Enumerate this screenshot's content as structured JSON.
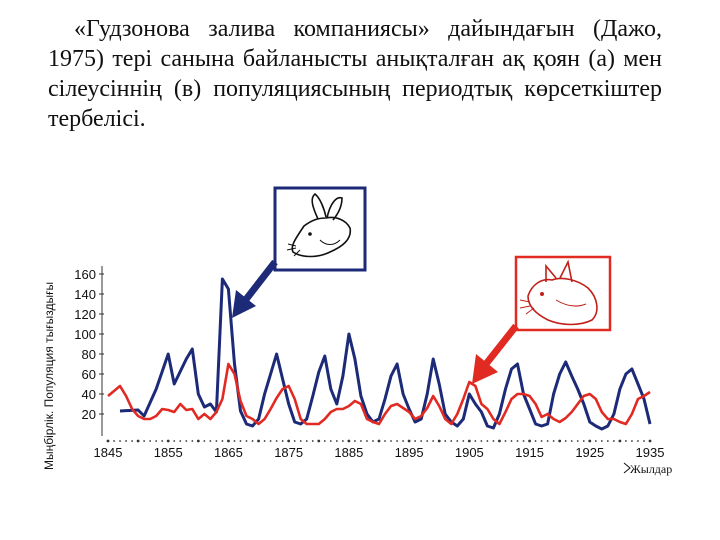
{
  "caption": "«Гудзонова залива компаниясы» дайындағын (Дажо, 1975) тері санына байланысты анықталған ақ қоян (а) мен сілеусіннің (в) популяциясының периодтық көрсеткіштер тербелісі.",
  "chart_data": {
    "type": "line",
    "ylabel": "Мыңбірлік. Популяция тығыздығы",
    "xlabel": "Жылдар",
    "ylim": [
      0,
      160
    ],
    "xlim": [
      1845,
      1935
    ],
    "yticks": [
      "160",
      "140",
      "120",
      "100",
      "80",
      "60",
      "40",
      "20"
    ],
    "xticks": [
      "1845",
      "1855",
      "1865",
      "1875",
      "1885",
      "1895",
      "1905",
      "1915",
      "1925",
      "1935"
    ],
    "grid": false,
    "series": [
      {
        "color": "#1c2a78",
        "icon": "hare-icon",
        "x": [
          1847,
          1850,
          1851,
          1853,
          1855,
          1856,
          1858,
          1859,
          1860,
          1861,
          1862,
          1863,
          1864,
          1865,
          1866,
          1867,
          1868,
          1869,
          1870,
          1871,
          1872,
          1873,
          1874,
          1875,
          1876,
          1877,
          1878,
          1879,
          1880,
          1881,
          1882,
          1883,
          1884,
          1885,
          1886,
          1887,
          1888,
          1889,
          1890,
          1891,
          1892,
          1893,
          1894,
          1895,
          1896,
          1897,
          1898,
          1899,
          1900,
          1901,
          1902,
          1903,
          1904,
          1905,
          1906,
          1907,
          1908,
          1909,
          1910,
          1911,
          1912,
          1913,
          1914,
          1915,
          1916,
          1917,
          1918,
          1919,
          1920,
          1921,
          1922,
          1923,
          1924,
          1925,
          1926,
          1927,
          1928,
          1929,
          1930,
          1931,
          1932,
          1933,
          1934,
          1935
        ],
        "values": [
          23,
          24,
          18,
          45,
          80,
          50,
          75,
          85,
          40,
          27,
          30,
          22,
          155,
          145,
          70,
          23,
          10,
          8,
          15,
          40,
          60,
          80,
          55,
          30,
          12,
          10,
          15,
          38,
          62,
          78,
          45,
          30,
          58,
          100,
          75,
          38,
          20,
          12,
          15,
          35,
          58,
          70,
          40,
          25,
          12,
          15,
          40,
          75,
          50,
          20,
          12,
          8,
          15,
          40,
          30,
          22,
          8,
          6,
          20,
          45,
          65,
          70,
          40,
          25,
          10,
          8,
          10,
          40,
          60,
          72,
          58,
          45,
          30,
          12,
          8,
          5,
          8,
          20,
          45,
          60,
          65,
          50,
          35,
          10
        ]
      },
      {
        "color": "#e02a22",
        "icon": "lynx-icon",
        "x": [
          1845,
          1846,
          1847,
          1848,
          1849,
          1850,
          1851,
          1852,
          1853,
          1854,
          1855,
          1856,
          1857,
          1858,
          1859,
          1860,
          1861,
          1862,
          1863,
          1864,
          1865,
          1866,
          1867,
          1868,
          1869,
          1870,
          1871,
          1872,
          1873,
          1874,
          1875,
          1876,
          1877,
          1878,
          1879,
          1880,
          1881,
          1882,
          1883,
          1884,
          1885,
          1886,
          1887,
          1888,
          1889,
          1890,
          1891,
          1892,
          1893,
          1894,
          1895,
          1896,
          1897,
          1898,
          1899,
          1900,
          1901,
          1902,
          1903,
          1904,
          1905,
          1906,
          1907,
          1908,
          1909,
          1910,
          1911,
          1912,
          1913,
          1914,
          1915,
          1916,
          1917,
          1918,
          1919,
          1920,
          1921,
          1922,
          1923,
          1924,
          1925,
          1926,
          1927,
          1928,
          1929,
          1930,
          1931,
          1932,
          1933,
          1934,
          1935
        ],
        "values": [
          38,
          43,
          48,
          38,
          25,
          18,
          15,
          15,
          18,
          25,
          24,
          22,
          30,
          24,
          25,
          15,
          20,
          15,
          22,
          35,
          70,
          60,
          33,
          18,
          15,
          10,
          15,
          25,
          36,
          45,
          48,
          35,
          15,
          10,
          10,
          10,
          15,
          22,
          25,
          25,
          28,
          33,
          30,
          15,
          12,
          10,
          20,
          28,
          30,
          26,
          22,
          15,
          18,
          26,
          38,
          28,
          15,
          10,
          20,
          35,
          52,
          48,
          30,
          25,
          15,
          10,
          22,
          35,
          40,
          40,
          38,
          30,
          17,
          20,
          15,
          12,
          16,
          22,
          30,
          38,
          40,
          35,
          22,
          15,
          15,
          12,
          10,
          20,
          35,
          38,
          42
        ]
      }
    ]
  }
}
